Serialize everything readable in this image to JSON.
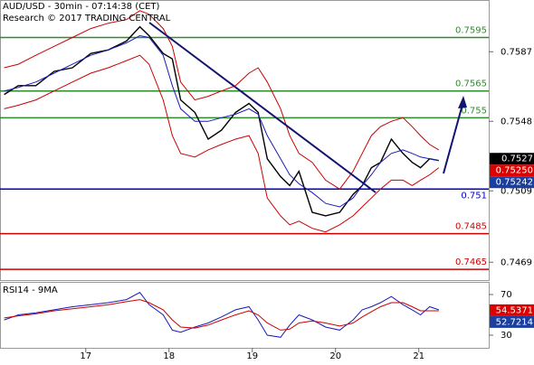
{
  "chart_data": [
    {
      "type": "line",
      "title": "AUD/USD - 30min - 07:14:38 (CET)",
      "subtitle": "Research © 2017 TRADING CENTRAL",
      "x": [
        16.02,
        16.19,
        16.4,
        16.62,
        16.84,
        17.06,
        17.27,
        17.49,
        17.65,
        17.76,
        17.93,
        18.04,
        18.14,
        18.31,
        18.47,
        18.63,
        18.8,
        18.96,
        19.07,
        19.18,
        19.34,
        19.45,
        19.56,
        19.72,
        19.88,
        20.05,
        20.21,
        20.32,
        20.43,
        20.54,
        20.67,
        20.81,
        20.92,
        21.02,
        21.13,
        21.24
      ],
      "series": [
        {
          "color": "#000000",
          "values": [
            0.7563,
            0.7568,
            0.7568,
            0.7576,
            0.7578,
            0.7586,
            0.7588,
            0.7593,
            0.7601,
            0.7596,
            0.7586,
            0.7583,
            0.756,
            0.7553,
            0.7538,
            0.7543,
            0.7553,
            0.7558,
            0.7553,
            0.7527,
            0.7517,
            0.7512,
            0.752,
            0.7497,
            0.7495,
            0.7497,
            0.7507,
            0.7512,
            0.7522,
            0.7525,
            0.7538,
            0.753,
            0.7525,
            0.7522,
            0.7527,
            0.7526
          ]
        },
        {
          "color": "#1a1ab8",
          "values": [
            0.7565,
            0.7567,
            0.757,
            0.7575,
            0.758,
            0.7585,
            0.7588,
            0.7592,
            0.7596,
            0.7595,
            0.7585,
            0.7568,
            0.7555,
            0.7548,
            0.7548,
            0.755,
            0.7552,
            0.7555,
            0.7552,
            0.754,
            0.7527,
            0.7518,
            0.7513,
            0.7508,
            0.7502,
            0.75,
            0.7505,
            0.7512,
            0.7518,
            0.7525,
            0.753,
            0.7532,
            0.753,
            0.7528,
            0.7527,
            0.7526
          ]
        },
        {
          "color": "#cc0000",
          "values": [
            0.7578,
            0.758,
            0.7585,
            0.759,
            0.7595,
            0.76,
            0.7603,
            0.7605,
            0.761,
            0.7608,
            0.76,
            0.759,
            0.757,
            0.756,
            0.7562,
            0.7565,
            0.7568,
            0.7575,
            0.7578,
            0.757,
            0.7555,
            0.754,
            0.753,
            0.7525,
            0.7515,
            0.751,
            0.752,
            0.753,
            0.754,
            0.7545,
            0.7548,
            0.755,
            0.7545,
            0.754,
            0.7535,
            0.7532
          ]
        },
        {
          "color": "#cc0000",
          "values": [
            0.7555,
            0.7557,
            0.756,
            0.7565,
            0.757,
            0.7575,
            0.7578,
            0.7582,
            0.7585,
            0.758,
            0.756,
            0.754,
            0.753,
            0.7528,
            0.7532,
            0.7535,
            0.7538,
            0.754,
            0.753,
            0.7505,
            0.7495,
            0.749,
            0.7492,
            0.7488,
            0.7486,
            0.749,
            0.7495,
            0.75,
            0.7505,
            0.751,
            0.7515,
            0.7515,
            0.7512,
            0.7515,
            0.7518,
            0.7522
          ]
        }
      ],
      "xlim": [
        15.97,
        21.84
      ],
      "ylim": [
        0.7459,
        0.7616
      ],
      "yticks": [
        0.7587,
        0.7548,
        0.7509,
        0.7469
      ],
      "levels": [
        {
          "value": 0.7595,
          "color": "#2e8b2e"
        },
        {
          "value": 0.7565,
          "color": "#2e8b2e"
        },
        {
          "value": 0.755,
          "color": "#2e8b2e"
        },
        {
          "value": 0.751,
          "color": "#0000cc"
        },
        {
          "value": 0.7485,
          "color": "#cc0000"
        },
        {
          "value": 0.7465,
          "color": "#cc0000"
        }
      ],
      "price_tags": [
        {
          "value": 0.7527,
          "color": "#000000"
        },
        {
          "value": 0.7525,
          "label": "0.75250",
          "color": "#dd0000"
        },
        {
          "value": 0.75242,
          "color": "#1a3fa0"
        }
      ],
      "grid": false
    },
    {
      "type": "line",
      "title": "RSI14 - 9MA",
      "x": [
        16.02,
        16.19,
        16.4,
        16.62,
        16.84,
        17.06,
        17.27,
        17.49,
        17.65,
        17.76,
        17.93,
        18.04,
        18.14,
        18.31,
        18.47,
        18.63,
        18.8,
        18.96,
        19.07,
        19.18,
        19.34,
        19.45,
        19.56,
        19.72,
        19.88,
        20.05,
        20.21,
        20.32,
        20.43,
        20.54,
        20.67,
        20.81,
        20.92,
        21.02,
        21.13,
        21.24
      ],
      "series": [
        {
          "color": "#1a1ab8",
          "values": [
            45,
            50,
            52,
            55,
            58,
            60,
            62,
            65,
            72,
            60,
            50,
            35,
            33,
            38,
            42,
            48,
            55,
            58,
            45,
            30,
            28,
            40,
            50,
            45,
            38,
            35,
            45,
            55,
            58,
            62,
            68,
            60,
            55,
            50,
            58,
            55
          ]
        },
        {
          "color": "#cc0000",
          "values": [
            47,
            49,
            51,
            54,
            56,
            58,
            60,
            63,
            65,
            62,
            55,
            45,
            38,
            37,
            40,
            45,
            50,
            54,
            50,
            42,
            35,
            36,
            42,
            44,
            42,
            39,
            42,
            48,
            53,
            58,
            62,
            62,
            58,
            54,
            54,
            54
          ]
        }
      ],
      "xlim": [
        15.97,
        21.84
      ],
      "ylim": [
        17.6,
        82.4
      ],
      "yticks": [
        70,
        30
      ],
      "xticks": [
        17,
        18,
        19,
        20,
        21
      ],
      "price_tags": [
        {
          "value": 54.5371,
          "color": "#dd0000"
        },
        {
          "value": 52.7214,
          "color": "#1a3fa0"
        }
      ],
      "grid": false
    }
  ]
}
